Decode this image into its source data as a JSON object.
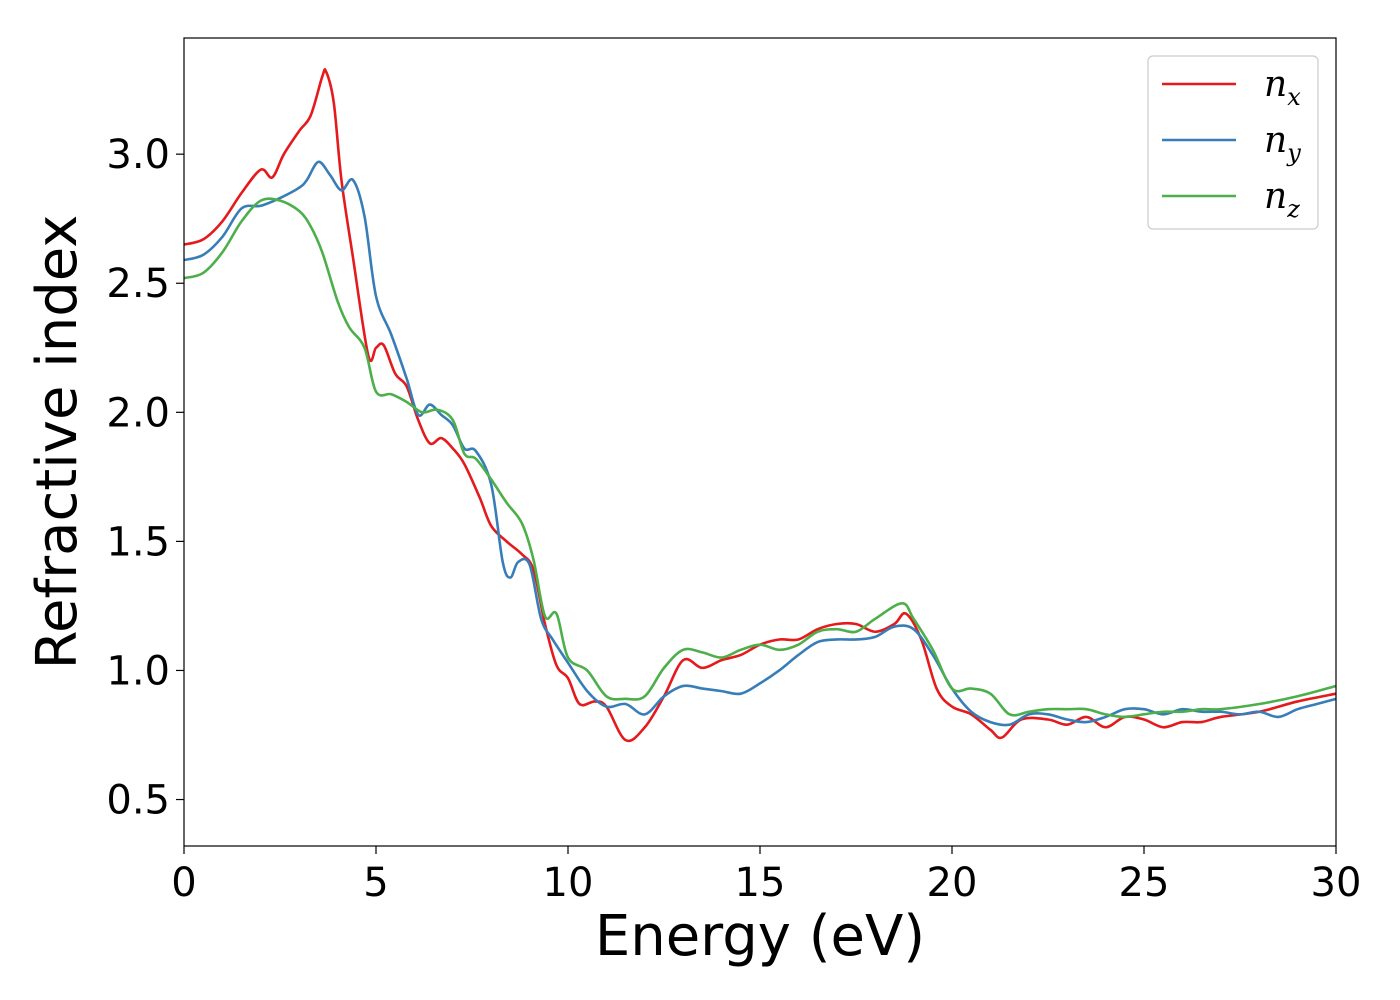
{
  "chart_data": {
    "type": "line",
    "xlabel": "Energy (eV)",
    "ylabel": "Refractive index",
    "xlim": [
      0,
      30
    ],
    "ylim": [
      0.32,
      3.45
    ],
    "xticks": [
      0,
      5,
      10,
      15,
      20,
      25,
      30
    ],
    "xtick_labels": [
      "0",
      "5",
      "10",
      "15",
      "20",
      "25",
      "30"
    ],
    "yticks": [
      0.5,
      1.0,
      1.5,
      2.0,
      2.5,
      3.0
    ],
    "ytick_labels": [
      "0.5",
      "1.0",
      "1.5",
      "2.0",
      "2.5",
      "3.0"
    ],
    "grid": false,
    "legend_position": "top-right",
    "series": [
      {
        "name": "n",
        "subscript": "x",
        "color": "#e41a1c",
        "x": [
          0,
          0.5,
          1,
          1.5,
          2,
          2.3,
          2.6,
          3,
          3.3,
          3.6,
          3.7,
          3.9,
          4.1,
          4.4,
          4.8,
          5.0,
          5.2,
          5.5,
          5.8,
          6.1,
          6.4,
          6.7,
          7.0,
          7.3,
          7.7,
          8.0,
          8.4,
          8.8,
          9.1,
          9.4,
          9.7,
          10.0,
          10.3,
          10.7,
          11.0,
          11.5,
          12.0,
          12.5,
          13.0,
          13.5,
          14.0,
          14.5,
          15.0,
          15.5,
          16.0,
          16.5,
          17.0,
          17.5,
          18.0,
          18.5,
          18.8,
          19.2,
          19.6,
          20.0,
          20.5,
          21.0,
          21.3,
          21.8,
          22.5,
          23.0,
          23.5,
          24.0,
          24.5,
          25.0,
          25.5,
          26.0,
          26.5,
          27.0,
          28.0,
          29.0,
          30.0
        ],
        "values": [
          2.65,
          2.67,
          2.74,
          2.85,
          2.94,
          2.91,
          3.0,
          3.09,
          3.15,
          3.3,
          3.32,
          3.2,
          2.9,
          2.6,
          2.22,
          2.25,
          2.26,
          2.15,
          2.1,
          1.97,
          1.88,
          1.9,
          1.86,
          1.8,
          1.67,
          1.56,
          1.5,
          1.45,
          1.39,
          1.18,
          1.02,
          0.97,
          0.87,
          0.88,
          0.86,
          0.73,
          0.78,
          0.9,
          1.04,
          1.01,
          1.04,
          1.06,
          1.1,
          1.12,
          1.12,
          1.16,
          1.18,
          1.18,
          1.15,
          1.18,
          1.22,
          1.12,
          0.93,
          0.86,
          0.83,
          0.77,
          0.74,
          0.81,
          0.81,
          0.79,
          0.82,
          0.78,
          0.82,
          0.81,
          0.78,
          0.8,
          0.8,
          0.82,
          0.84,
          0.88,
          0.91
        ]
      },
      {
        "name": "n",
        "subscript": "y",
        "color": "#377eb8",
        "x": [
          0,
          0.5,
          1,
          1.5,
          2,
          2.5,
          3,
          3.2,
          3.5,
          3.8,
          4.1,
          4.4,
          4.7,
          5.0,
          5.4,
          5.8,
          6.1,
          6.4,
          6.7,
          7.0,
          7.3,
          7.6,
          8.0,
          8.3,
          8.5,
          8.7,
          9.0,
          9.3,
          9.6,
          10.0,
          10.5,
          11.0,
          11.5,
          12.0,
          12.5,
          13.0,
          13.5,
          14.0,
          14.5,
          15.0,
          15.5,
          16.0,
          16.5,
          17.0,
          17.5,
          18.0,
          18.5,
          19.0,
          19.5,
          20.0,
          20.5,
          21.0,
          21.5,
          22.0,
          22.5,
          23.0,
          23.5,
          24.0,
          24.5,
          25.0,
          25.5,
          26.0,
          26.5,
          27.0,
          27.5,
          28.0,
          28.5,
          29.0,
          29.5,
          30.0
        ],
        "values": [
          2.59,
          2.61,
          2.68,
          2.79,
          2.8,
          2.83,
          2.87,
          2.9,
          2.97,
          2.92,
          2.86,
          2.9,
          2.76,
          2.45,
          2.3,
          2.13,
          1.99,
          2.03,
          1.99,
          1.95,
          1.86,
          1.85,
          1.72,
          1.42,
          1.36,
          1.42,
          1.41,
          1.2,
          1.12,
          1.03,
          0.92,
          0.86,
          0.87,
          0.83,
          0.9,
          0.94,
          0.93,
          0.92,
          0.91,
          0.95,
          1.0,
          1.06,
          1.11,
          1.12,
          1.12,
          1.13,
          1.17,
          1.16,
          1.06,
          0.93,
          0.84,
          0.8,
          0.79,
          0.83,
          0.83,
          0.81,
          0.8,
          0.82,
          0.85,
          0.85,
          0.83,
          0.85,
          0.84,
          0.84,
          0.83,
          0.84,
          0.82,
          0.85,
          0.87,
          0.89
        ]
      },
      {
        "name": "n",
        "subscript": "z",
        "color": "#4daf4a",
        "x": [
          0,
          0.5,
          1,
          1.5,
          2,
          2.5,
          3,
          3.3,
          3.6,
          4.0,
          4.3,
          4.7,
          5.0,
          5.4,
          5.8,
          6.2,
          6.6,
          7.0,
          7.3,
          7.6,
          8.0,
          8.4,
          8.8,
          9.1,
          9.4,
          9.7,
          10.0,
          10.5,
          11.0,
          11.5,
          12.0,
          12.5,
          13.0,
          13.5,
          14.0,
          14.5,
          15.0,
          15.5,
          16.0,
          16.5,
          17.0,
          17.5,
          18.0,
          18.7,
          19.0,
          19.5,
          20.0,
          20.5,
          21.0,
          21.5,
          22.0,
          22.5,
          23.0,
          23.5,
          24.0,
          24.5,
          25.0,
          25.5,
          26.0,
          26.5,
          27.0,
          28.0,
          29.0,
          30.0
        ],
        "values": [
          2.52,
          2.54,
          2.62,
          2.74,
          2.82,
          2.82,
          2.78,
          2.72,
          2.62,
          2.43,
          2.33,
          2.25,
          2.08,
          2.07,
          2.04,
          2.0,
          2.01,
          1.97,
          1.84,
          1.82,
          1.74,
          1.65,
          1.57,
          1.43,
          1.21,
          1.22,
          1.05,
          1.0,
          0.9,
          0.89,
          0.9,
          1.01,
          1.08,
          1.07,
          1.05,
          1.08,
          1.1,
          1.08,
          1.1,
          1.15,
          1.16,
          1.15,
          1.2,
          1.26,
          1.2,
          1.08,
          0.93,
          0.93,
          0.91,
          0.83,
          0.84,
          0.85,
          0.85,
          0.85,
          0.83,
          0.82,
          0.83,
          0.84,
          0.84,
          0.85,
          0.85,
          0.87,
          0.9,
          0.94
        ]
      }
    ]
  }
}
